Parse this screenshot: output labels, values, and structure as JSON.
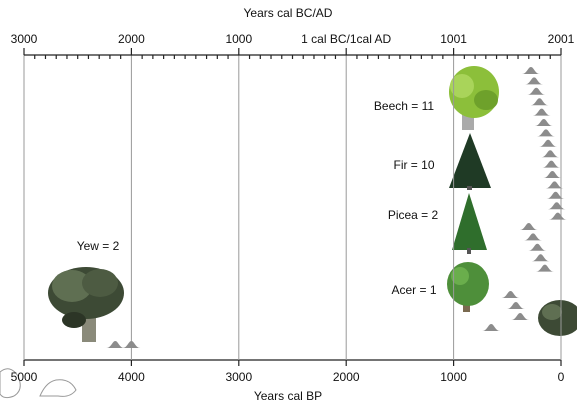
{
  "chart_data": {
    "type": "dates",
    "x2label": "Years cal BC/AD",
    "xlabel": "Years cal BP",
    "xlim": [
      5000,
      0
    ],
    "xticks": [
      5000,
      4000,
      3000,
      2000,
      1000,
      0
    ],
    "x2lim": [
      -2999,
      2001
    ],
    "x2ticks": [
      {
        "value": -2999,
        "label": "3000"
      },
      {
        "value": -1999,
        "label": "2000"
      },
      {
        "value": -999,
        "label": "1000"
      },
      {
        "value": 1,
        "label": "1 cal BC/1cal AD"
      },
      1001,
      2001
    ],
    "x2minorticks": [
      -2899,
      -2799,
      -2699,
      -2599,
      -2499,
      -2399,
      -2299,
      -2199,
      -2099,
      -1899,
      -1799,
      -1699,
      -1599,
      -1499,
      -1399,
      -1299,
      -1199,
      -1099,
      -899,
      -799,
      -699,
      -599,
      -499,
      -399,
      -299,
      -199,
      -99,
      101,
      201,
      301,
      401,
      501,
      601,
      701,
      801,
      901,
      1101,
      1201,
      1301,
      1401,
      1501,
      1601,
      1701,
      1801,
      1901
    ],
    "grid": true,
    "color": "#8c8c8c",
    "annotations": [
      "Yew = 2",
      "Beech = 11",
      "Fir = 10",
      "Picea = 2",
      "Acer = 1"
    ],
    "dates": [
      4150,
      4000,
      280,
      250,
      230,
      200,
      180,
      160,
      140,
      120,
      100,
      90,
      80,
      60,
      50,
      40,
      30,
      300,
      260,
      220,
      190,
      150,
      470,
      420,
      380,
      650
    ]
  }
}
